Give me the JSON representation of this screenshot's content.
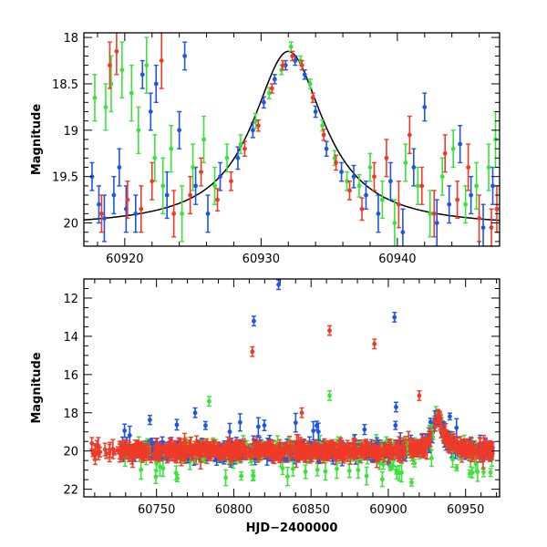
{
  "chart_data": [
    {
      "type": "scatter",
      "panel": "top",
      "xlabel": "",
      "ylabel": "Magnitude",
      "xlim": [
        60917,
        60947.5
      ],
      "ylim": [
        20.25,
        17.95
      ],
      "y_inverted": true,
      "x_ticks": [
        60920,
        60930,
        60940
      ],
      "x_tick_labels": [
        "60920",
        "60930",
        "60940"
      ],
      "y_ticks": [
        18,
        18.5,
        19,
        19.5,
        20
      ],
      "y_tick_labels": [
        "18",
        "18.5",
        "19",
        "19.5",
        "20"
      ],
      "model_curve": {
        "type": "lorentzian",
        "peak_x": 60932.0,
        "peak_mag": 18.15,
        "base_mag": 20.05,
        "width_days": 3.2,
        "color": "#000000"
      },
      "series": [
        {
          "name": "blue",
          "color": "#1f55e0",
          "points": [
            [
              60917.6,
              19.5,
              0.15
            ],
            [
              60918.1,
              19.8,
              0.2
            ],
            [
              60918.5,
              19.95,
              0.25
            ],
            [
              60919.2,
              19.7,
              0.2
            ],
            [
              60919.6,
              19.4,
              0.2
            ],
            [
              60920.1,
              19.85,
              0.25
            ],
            [
              60920.8,
              19.9,
              0.2
            ],
            [
              60921.3,
              18.4,
              0.15
            ],
            [
              60921.9,
              18.8,
              0.2
            ],
            [
              60922.3,
              18.5,
              0.2
            ],
            [
              60923.1,
              19.7,
              0.25
            ],
            [
              60924.0,
              19.0,
              0.2
            ],
            [
              60924.4,
              18.2,
              0.15
            ],
            [
              60925.2,
              19.6,
              0.2
            ],
            [
              60926.1,
              19.9,
              0.2
            ],
            [
              60927.0,
              19.5,
              0.15
            ],
            [
              60928.3,
              19.3,
              0.12
            ],
            [
              60929.4,
              19.0,
              0.08
            ],
            [
              60930.2,
              18.7,
              0.06
            ],
            [
              60931.0,
              18.45,
              0.05
            ],
            [
              60931.8,
              18.3,
              0.05
            ],
            [
              60932.5,
              18.25,
              0.05
            ],
            [
              60933.2,
              18.4,
              0.05
            ],
            [
              60934.0,
              18.8,
              0.06
            ],
            [
              60934.8,
              19.2,
              0.08
            ],
            [
              60935.9,
              19.45,
              0.1
            ],
            [
              60936.8,
              19.5,
              0.12
            ],
            [
              60937.7,
              19.7,
              0.15
            ],
            [
              60938.6,
              19.9,
              0.2
            ],
            [
              60939.5,
              19.55,
              0.2
            ],
            [
              60940.4,
              20.1,
              0.25
            ],
            [
              60941.2,
              19.4,
              0.2
            ],
            [
              60942.0,
              18.75,
              0.15
            ],
            [
              60942.9,
              20.0,
              0.25
            ],
            [
              60943.8,
              19.8,
              0.2
            ],
            [
              60944.6,
              19.15,
              0.2
            ],
            [
              60945.4,
              19.7,
              0.2
            ],
            [
              60946.3,
              20.05,
              0.25
            ],
            [
              60947.0,
              19.6,
              0.2
            ]
          ]
        },
        {
          "name": "green",
          "color": "#3ce23c",
          "points": [
            [
              60917.8,
              18.65,
              0.25
            ],
            [
              60918.6,
              18.75,
              0.25
            ],
            [
              60919.0,
              18.5,
              0.3
            ],
            [
              60919.8,
              18.35,
              0.3
            ],
            [
              60920.5,
              18.6,
              0.3
            ],
            [
              60921.0,
              19.0,
              0.25
            ],
            [
              60921.6,
              18.3,
              0.3
            ],
            [
              60922.2,
              19.3,
              0.25
            ],
            [
              60922.8,
              19.6,
              0.3
            ],
            [
              60923.4,
              19.2,
              0.25
            ],
            [
              60924.2,
              19.9,
              0.3
            ],
            [
              60925.0,
              19.4,
              0.25
            ],
            [
              60925.8,
              19.1,
              0.25
            ],
            [
              60926.6,
              19.6,
              0.2
            ],
            [
              60927.5,
              19.3,
              0.15
            ],
            [
              60928.5,
              19.15,
              0.1
            ],
            [
              60929.6,
              18.9,
              0.08
            ],
            [
              60930.6,
              18.6,
              0.06
            ],
            [
              60931.5,
              18.35,
              0.05
            ],
            [
              60932.2,
              18.1,
              0.05
            ],
            [
              60932.9,
              18.25,
              0.05
            ],
            [
              60933.6,
              18.5,
              0.05
            ],
            [
              60934.5,
              18.95,
              0.06
            ],
            [
              60935.4,
              19.3,
              0.08
            ],
            [
              60936.3,
              19.55,
              0.1
            ],
            [
              60937.2,
              19.6,
              0.12
            ],
            [
              60938.0,
              19.4,
              0.15
            ],
            [
              60938.9,
              19.75,
              0.2
            ],
            [
              60939.8,
              20.0,
              0.25
            ],
            [
              60940.6,
              19.35,
              0.2
            ],
            [
              60941.5,
              19.6,
              0.2
            ],
            [
              60942.4,
              19.9,
              0.25
            ],
            [
              60943.3,
              19.5,
              0.2
            ],
            [
              60944.1,
              19.2,
              0.2
            ],
            [
              60945.0,
              19.8,
              0.2
            ],
            [
              60945.8,
              19.6,
              0.25
            ],
            [
              60946.7,
              19.4,
              0.25
            ],
            [
              60947.2,
              19.1,
              0.3
            ]
          ]
        },
        {
          "name": "red",
          "color": "#f03a28",
          "points": [
            [
              60918.3,
              19.9,
              0.2
            ],
            [
              60918.9,
              18.3,
              0.25
            ],
            [
              60919.4,
              18.15,
              0.25
            ],
            [
              60920.2,
              19.75,
              0.2
            ],
            [
              60921.2,
              19.85,
              0.25
            ],
            [
              60922.0,
              19.55,
              0.2
            ],
            [
              60922.7,
              18.25,
              0.3
            ],
            [
              60923.6,
              19.9,
              0.25
            ],
            [
              60924.8,
              19.7,
              0.2
            ],
            [
              60925.6,
              19.45,
              0.15
            ],
            [
              60926.8,
              19.75,
              0.12
            ],
            [
              60927.8,
              19.55,
              0.1
            ],
            [
              60928.8,
              19.2,
              0.08
            ],
            [
              60929.8,
              18.95,
              0.06
            ],
            [
              60930.8,
              18.55,
              0.05
            ],
            [
              60931.6,
              18.3,
              0.05
            ],
            [
              60932.3,
              18.2,
              0.05
            ],
            [
              60933.0,
              18.3,
              0.05
            ],
            [
              60933.8,
              18.65,
              0.05
            ],
            [
              60934.6,
              19.05,
              0.06
            ],
            [
              60935.5,
              19.35,
              0.08
            ],
            [
              60936.5,
              19.65,
              0.1
            ],
            [
              60937.4,
              19.85,
              0.12
            ],
            [
              60938.3,
              19.5,
              0.15
            ],
            [
              60939.2,
              19.3,
              0.2
            ],
            [
              60940.1,
              19.8,
              0.25
            ],
            [
              60940.9,
              19.05,
              0.2
            ],
            [
              60941.8,
              19.6,
              0.2
            ],
            [
              60942.7,
              19.9,
              0.25
            ],
            [
              60943.5,
              19.25,
              0.2
            ],
            [
              60944.4,
              19.75,
              0.2
            ],
            [
              60945.2,
              19.4,
              0.25
            ],
            [
              60946.0,
              19.95,
              0.25
            ],
            [
              60946.9,
              20.05,
              0.2
            ],
            [
              60947.3,
              19.85,
              0.25
            ]
          ]
        }
      ]
    },
    {
      "type": "scatter",
      "panel": "bottom",
      "xlabel": "HJD−2400000",
      "ylabel": "Magnitude",
      "xlim": [
        60703,
        60972
      ],
      "ylim": [
        22.4,
        11.0
      ],
      "y_inverted": true,
      "x_ticks": [
        60750,
        60800,
        60850,
        60900,
        60950
      ],
      "x_tick_labels": [
        "60750",
        "60800",
        "60850",
        "60900",
        "60950"
      ],
      "y_ticks": [
        12,
        14,
        16,
        18,
        20,
        22
      ],
      "y_tick_labels": [
        "12",
        "14",
        "16",
        "18",
        "20",
        "22"
      ],
      "baseline_mag": 20.0,
      "outliers": [
        {
          "series": "blue",
          "x": 60829,
          "y": 11.3
        },
        {
          "series": "blue",
          "x": 60813,
          "y": 13.2
        },
        {
          "series": "blue",
          "x": 60904,
          "y": 13.0
        },
        {
          "series": "red",
          "x": 60812,
          "y": 14.8
        },
        {
          "series": "red",
          "x": 60862,
          "y": 13.7
        },
        {
          "series": "red",
          "x": 60891,
          "y": 14.4
        },
        {
          "series": "red",
          "x": 60920,
          "y": 17.1
        },
        {
          "series": "green",
          "x": 60862,
          "y": 17.1
        },
        {
          "series": "green",
          "x": 60784,
          "y": 17.4
        },
        {
          "series": "blue",
          "x": 60905,
          "y": 17.7
        },
        {
          "series": "blue",
          "x": 60775,
          "y": 18.0
        },
        {
          "series": "red",
          "x": 60844,
          "y": 18.0
        }
      ],
      "series": [
        {
          "name": "blue",
          "color": "#1f55e0"
        },
        {
          "name": "green",
          "color": "#3ce23c"
        },
        {
          "name": "red",
          "color": "#f03a28"
        }
      ]
    }
  ]
}
